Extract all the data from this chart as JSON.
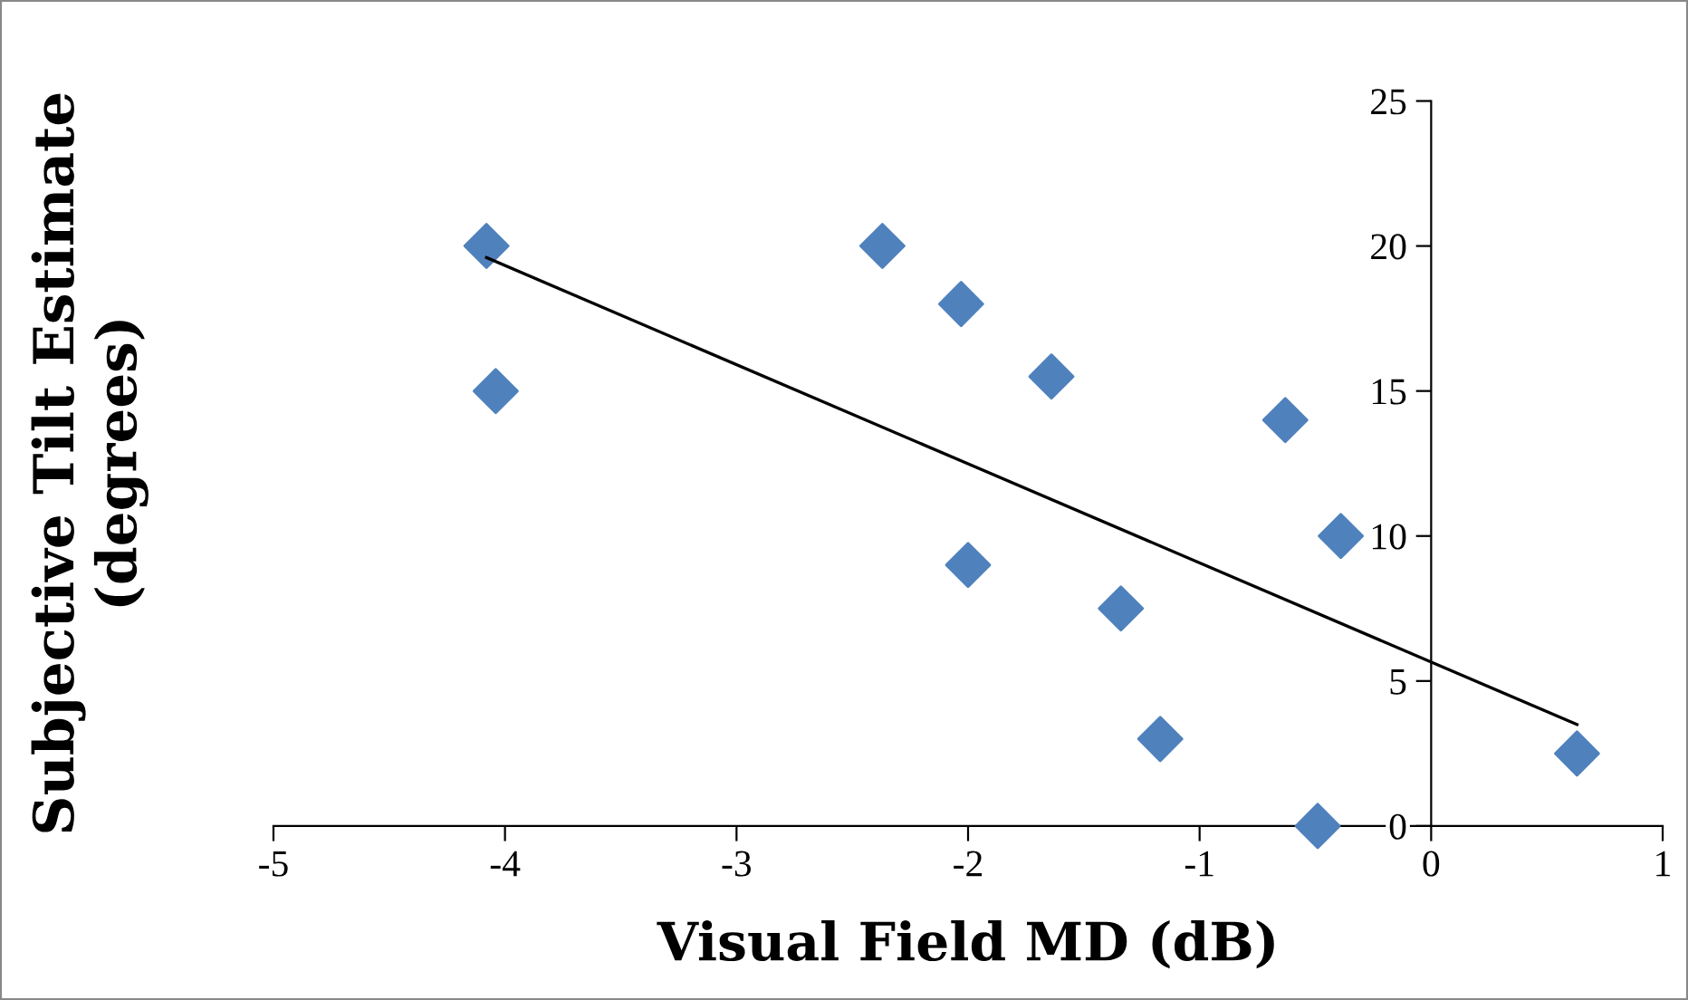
{
  "chart_data": {
    "type": "scatter",
    "xlabel": "Visual Field MD (dB)",
    "ylabel": "Subjective Tilt Estimate\n(degrees)",
    "marker": "diamond",
    "grid": false,
    "legend": false,
    "xlim": [
      -5,
      1
    ],
    "ylim": [
      0,
      25
    ],
    "xticks": [
      -5,
      -4,
      -3,
      -2,
      -1,
      0,
      1
    ],
    "yticks": [
      0,
      5,
      10,
      15,
      20,
      25
    ],
    "series": [
      {
        "color": "#4f81bd",
        "x": [
          -4.08,
          -4.04,
          -2.37,
          -2.03,
          -2.0,
          -1.64,
          -1.34,
          -1.17,
          -0.63,
          -0.39,
          -0.49,
          0.63
        ],
        "values": [
          20,
          15,
          20,
          18,
          9,
          15.5,
          7.5,
          3,
          14,
          10,
          0,
          2.5
        ]
      },
      {
        "type": "line",
        "color": "#000000",
        "marker": "none",
        "x": [
          -4.08,
          0.63
        ],
        "values": [
          19.6,
          3.5
        ]
      }
    ]
  }
}
